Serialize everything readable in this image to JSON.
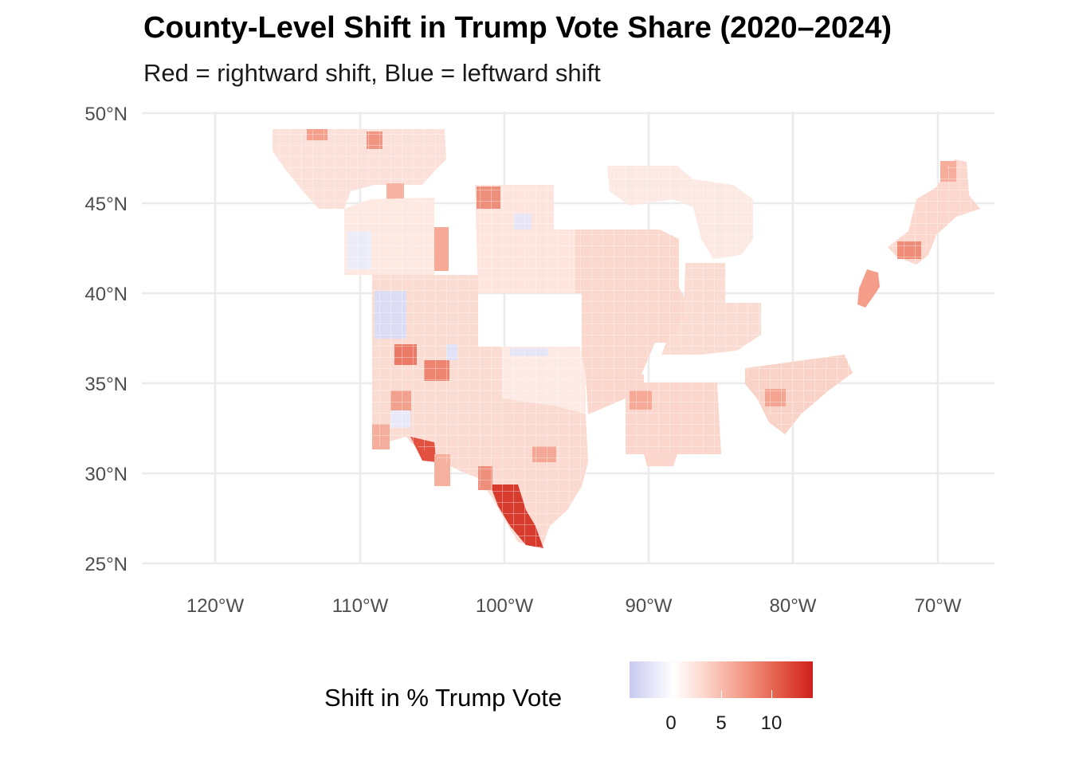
{
  "title": "County-Level Shift in Trump Vote Share (2020–2024)",
  "subtitle": "Red = rightward shift, Blue = leftward shift",
  "map": {
    "type": "choropleth",
    "axes": {
      "x_ticks": [
        "120°W",
        "110°W",
        "100°W",
        "90°W",
        "80°W",
        "70°W"
      ],
      "y_ticks": [
        "50°N",
        "45°N",
        "40°N",
        "35°N",
        "30°N",
        "25°N"
      ],
      "x_range_lon": [
        -125,
        -66
      ],
      "y_range_lat": [
        25,
        50
      ],
      "grid": true
    },
    "legend": {
      "title": "Shift in % Trump Vote",
      "position": "bottom",
      "ticks": [
        "0",
        "5",
        "10"
      ],
      "colors": {
        "low": "#c9c9f0",
        "mid": "#ffffff",
        "high": "#cf1f1d"
      }
    }
  },
  "colors": {
    "grid": "#ebebeb",
    "tick_text": "#4d4d4d"
  }
}
